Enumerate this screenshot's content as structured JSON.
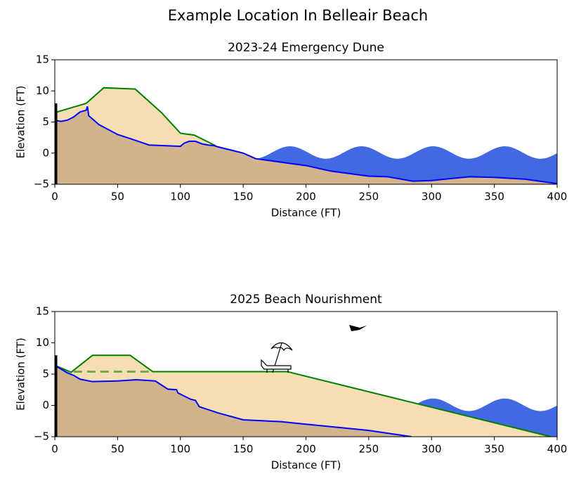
{
  "title": "Example Location In Belleair Beach",
  "chart_data": [
    {
      "type": "area",
      "title": "2023-24 Emergency Dune",
      "x_label": "Distance (FT)",
      "y_label": "Elevation (FT)",
      "xlim": [
        0,
        400
      ],
      "ylim": [
        -5,
        15
      ],
      "xticks": [
        0,
        50,
        100,
        150,
        200,
        250,
        300,
        350,
        400
      ],
      "yticks": [
        {
          "value": -5,
          "label": "−5"
        },
        0,
        5,
        10,
        15
      ],
      "wall_height": 8,
      "series": [
        {
          "color": "#008000",
          "fill": "#f5deb3",
          "x": [
            0,
            25,
            39,
            64,
            85,
            100,
            111,
            128
          ],
          "values": [
            6.5,
            8.0,
            10.5,
            10.3,
            6.5,
            3.2,
            2.9,
            1.2
          ]
        },
        {
          "color": "#0000ff",
          "fill": "#d2b48c",
          "x": [
            0,
            2,
            5,
            10,
            15,
            20,
            25,
            26,
            27,
            30,
            35,
            50,
            65,
            75,
            100,
            103,
            107,
            112,
            117,
            122,
            127,
            130,
            150,
            160,
            200,
            220,
            250,
            265,
            285,
            300,
            330,
            350,
            375,
            400
          ],
          "values": [
            5.5,
            5.2,
            5.1,
            5.3,
            5.8,
            6.6,
            6.9,
            7.5,
            6.0,
            5.5,
            4.6,
            3.0,
            2.0,
            1.3,
            1.1,
            1.6,
            1.9,
            1.9,
            1.5,
            1.3,
            1.2,
            1.0,
            0.0,
            -0.9,
            -2.0,
            -2.9,
            -3.7,
            -3.8,
            -4.5,
            -4.4,
            -3.8,
            -3.9,
            -4.2,
            -4.9
          ]
        }
      ]
    },
    {
      "type": "area",
      "title": "2025 Beach Nourishment",
      "x_label": "Distance (FT)",
      "y_label": "Elevation (FT)",
      "xlim": [
        0,
        400
      ],
      "ylim": [
        -5,
        15
      ],
      "xticks": [
        0,
        50,
        100,
        150,
        200,
        250,
        300,
        350,
        400
      ],
      "yticks": [
        {
          "value": -5,
          "label": "−5"
        },
        0,
        5,
        10,
        15
      ],
      "wall_height": 8,
      "series": [
        {
          "color": "#008000",
          "fill": "#f5deb3",
          "x": [
            0,
            13,
            30,
            60,
            78,
            185,
            395
          ],
          "values": [
            6.4,
            5.3,
            8.0,
            8.0,
            5.4,
            5.4,
            -5.0
          ]
        },
        {
          "color": "#0000ff",
          "fill": "#d2b48c",
          "x": [
            0,
            5,
            10,
            15,
            20,
            30,
            50,
            65,
            80,
            90,
            97,
            98,
            108,
            112,
            115,
            130,
            150,
            180,
            200,
            250,
            284
          ],
          "values": [
            6.4,
            5.8,
            5.2,
            4.8,
            4.2,
            3.8,
            3.9,
            4.1,
            3.9,
            2.6,
            2.5,
            2.0,
            1.0,
            0.8,
            -0.2,
            -1.2,
            -2.3,
            -2.6,
            -3.0,
            -4.0,
            -5.0
          ]
        },
        {
          "color": "#70ad47",
          "dashed": true,
          "x": [
            15,
            75
          ],
          "values": [
            5.4,
            5.4
          ]
        }
      ]
    }
  ]
}
